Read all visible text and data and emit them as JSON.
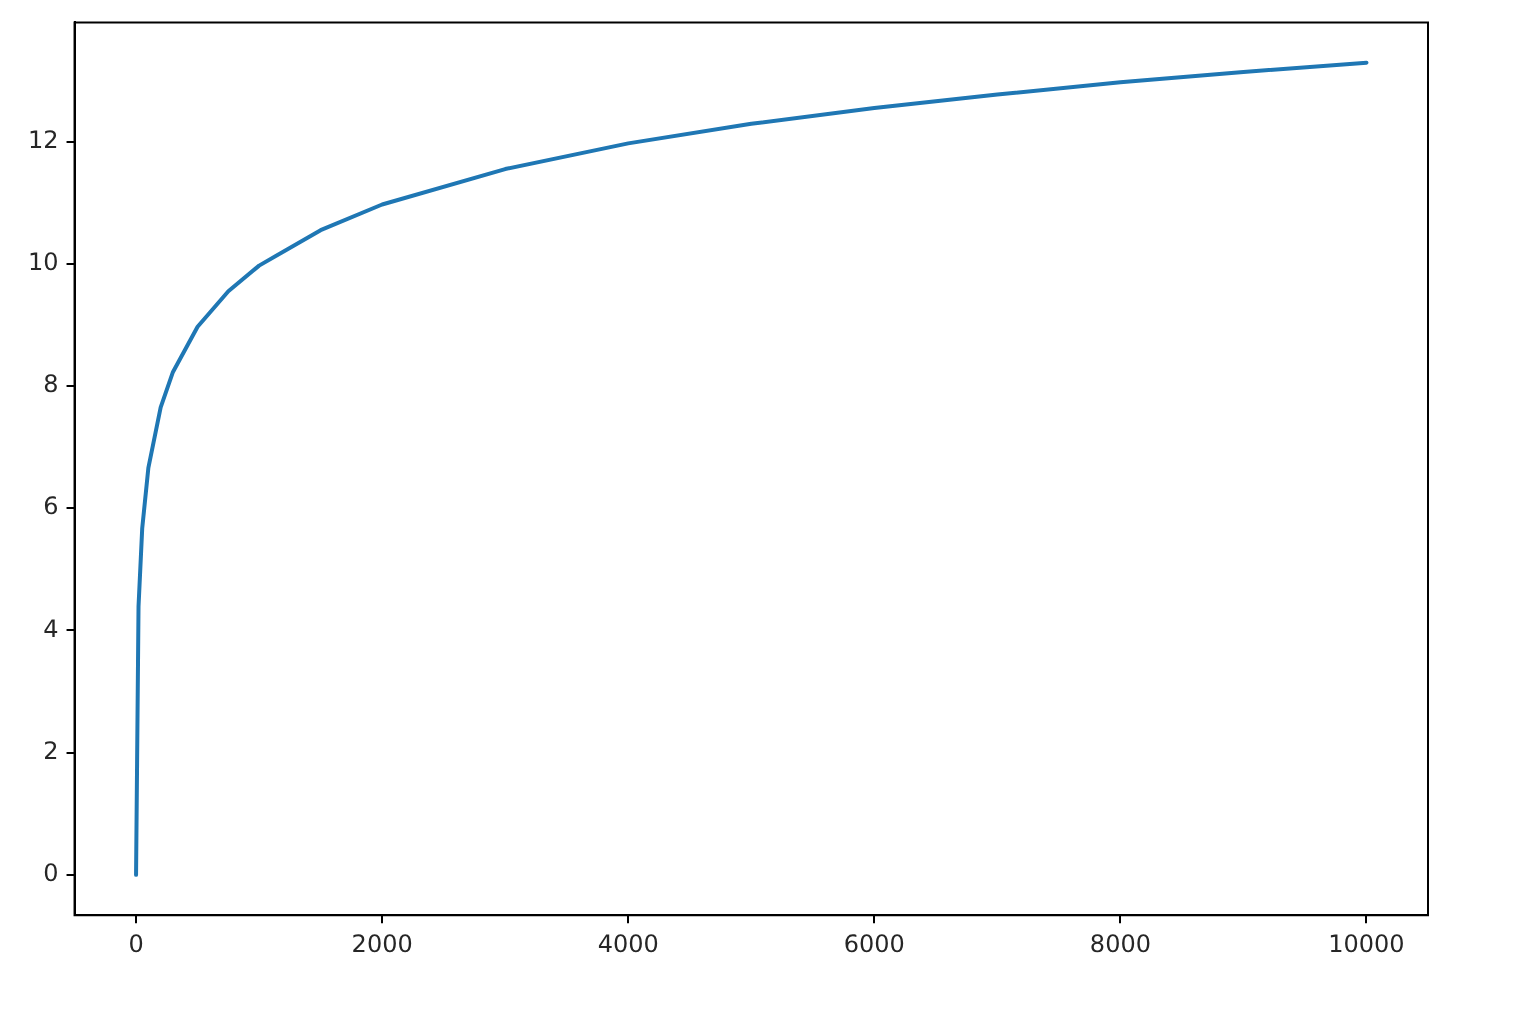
{
  "chart_data": {
    "type": "line",
    "x": [
      0,
      20,
      50,
      100,
      200,
      300,
      500,
      750,
      1000,
      1500,
      2000,
      3000,
      4000,
      5000,
      6000,
      7000,
      8000,
      9000,
      10000
    ],
    "series": [
      {
        "color": "#1f77b4",
        "values": [
          0,
          4.39,
          5.67,
          6.66,
          7.65,
          8.23,
          8.97,
          9.55,
          9.97,
          10.55,
          10.97,
          11.55,
          11.97,
          12.29,
          12.55,
          12.77,
          12.97,
          13.14,
          13.29
        ]
      }
    ],
    "xlim": [
      -500,
      10500
    ],
    "xticks": [
      0,
      2000,
      4000,
      6000,
      8000,
      10000
    ],
    "ylim": [
      -0.66,
      13.95
    ],
    "yticks": [
      0,
      2,
      4,
      6,
      8,
      10,
      12
    ],
    "marker": "none",
    "line_style": "solid",
    "legend": false
  }
}
